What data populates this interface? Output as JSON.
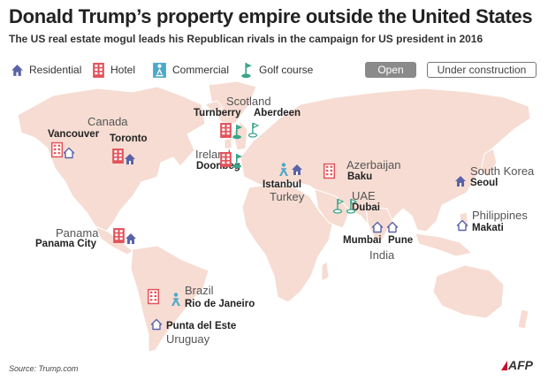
{
  "header": {
    "title": "Donald Trump’s property empire outside the United States",
    "subtitle": "The US real estate mogul leads his Republican rivals in the campaign for US president in 2016"
  },
  "legend": {
    "residential": "Residential",
    "hotel": "Hotel",
    "commercial": "Commercial",
    "golf": "Golf course",
    "open": "Open",
    "under_construction": "Under construction"
  },
  "colors": {
    "residential": "#5a63a8",
    "hotel": "#e2525a",
    "commercial": "#4aa9c8",
    "golf": "#3aa58a",
    "land": "#f6dcd2",
    "open_pill": "#8a8a8a"
  },
  "countries": {
    "canada": "Canada",
    "scotland": "Scotland",
    "ireland": "Ireland",
    "azerbaijan": "Azerbaijan",
    "turkey": "Turkey",
    "uae": "UAE",
    "south_korea": "South Korea",
    "philippines": "Philippines",
    "india": "India",
    "panama": "Panama",
    "brazil": "Brazil",
    "uruguay": "Uruguay"
  },
  "cities": {
    "vancouver": "Vancouver",
    "toronto": "Toronto",
    "turnberry": "Turnberry",
    "aberdeen": "Aberdeen",
    "doonbeg": "Doonbeg",
    "istanbul": "Istanbul",
    "baku": "Baku",
    "dubai": "Dubai",
    "seoul": "Seoul",
    "makati": "Makati",
    "mumbai": "Mumbai",
    "pune": "Pune",
    "panama_city": "Panama City",
    "rio": "Rio de Janeiro",
    "punta": "Punta del Este"
  },
  "footer": {
    "source": "Source: Trump.com",
    "agency": "AFP"
  }
}
